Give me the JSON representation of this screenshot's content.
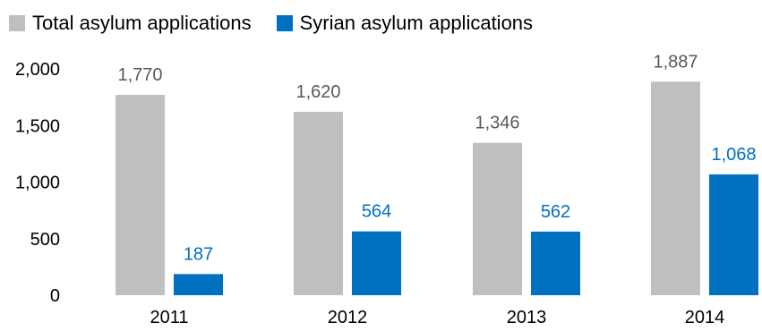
{
  "chart_data": {
    "type": "bar",
    "categories": [
      "2011",
      "2012",
      "2013",
      "2014"
    ],
    "series": [
      {
        "name": "Total asylum applications",
        "values": [
          1770,
          1620,
          1346,
          1887
        ],
        "labels": [
          "1,770",
          "1,620",
          "1,346",
          "1,887"
        ],
        "color": "#bfbfbf",
        "label_color": "#595959"
      },
      {
        "name": "Syrian asylum applications",
        "values": [
          187,
          564,
          562,
          1068
        ],
        "labels": [
          "187",
          "564",
          "562",
          "1,068"
        ],
        "color": "#0070c0",
        "label_color": "#0070c0"
      }
    ],
    "y_ticks": [
      0,
      500,
      1000,
      1500,
      2000
    ],
    "y_tick_labels": [
      "0",
      "500",
      "1,000",
      "1,500",
      "2,000"
    ],
    "ylim": [
      0,
      2000
    ],
    "grid": false,
    "legend_position": "top-left"
  }
}
